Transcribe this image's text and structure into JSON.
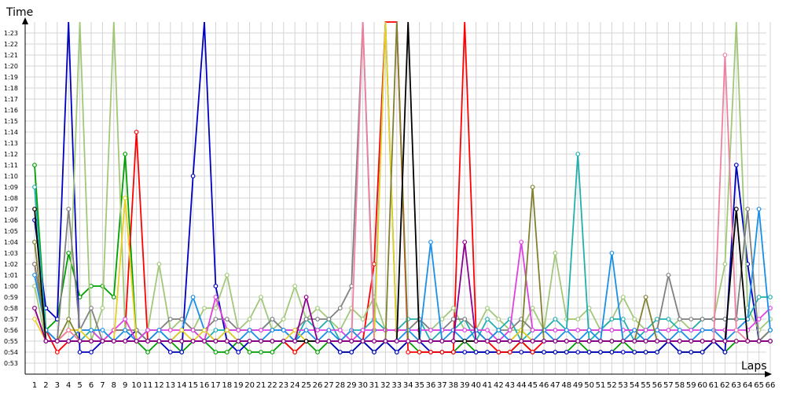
{
  "chart_data": {
    "type": "line",
    "ylabel": "Time",
    "xlabel": "Laps",
    "x_categories": [
      "1",
      "2",
      "3",
      "4",
      "5",
      "6",
      "7",
      "8",
      "9",
      "10",
      "11",
      "12",
      "13",
      "14",
      "15",
      "16",
      "17",
      "18",
      "19",
      "20",
      "21",
      "22",
      "23",
      "24",
      "25",
      "26",
      "27",
      "28",
      "29",
      "30",
      "31",
      "32",
      "33",
      "34",
      "35",
      "36",
      "37",
      "38",
      "39",
      "40",
      "41",
      "42",
      "43",
      "44",
      "45",
      "46",
      "47",
      "48",
      "49",
      "50",
      "51",
      "52",
      "53",
      "54",
      "55",
      "56",
      "57",
      "58",
      "59",
      "60",
      "61",
      "62",
      "63",
      "64",
      "65",
      "66"
    ],
    "y_ticks": [
      "0:53",
      "0:54",
      "0:55",
      "0:56",
      "0:57",
      "0:58",
      "0:59",
      "1:00",
      "1:01",
      "1:02",
      "1:03",
      "1:04",
      "1:05",
      "1:06",
      "1:07",
      "1:08",
      "1:09",
      "1:10",
      "1:11",
      "1:12",
      "1:13",
      "1:14",
      "1:15",
      "1:16",
      "1:17",
      "1:18",
      "1:19",
      "1:20",
      "1:21",
      "1:22",
      "1:23"
    ],
    "y_tick_seconds": [
      53,
      54,
      55,
      56,
      57,
      58,
      59,
      60,
      61,
      62,
      63,
      64,
      65,
      66,
      67,
      68,
      69,
      70,
      71,
      72,
      73,
      74,
      75,
      76,
      77,
      78,
      79,
      80,
      81,
      82,
      83
    ],
    "ylim_seconds": [
      52,
      84
    ],
    "y_unit": "seconds per lap (ticks shown as m:ss)",
    "grid": true,
    "series": [
      {
        "color": "#00a000",
        "values": [
          71,
          56,
          57,
          63,
          59,
          60,
          60,
          59,
          72,
          55,
          54,
          55,
          55,
          54,
          55,
          55,
          54,
          54,
          55,
          54,
          54,
          54,
          55,
          54,
          55,
          54,
          55,
          54,
          54,
          55,
          54,
          55,
          54,
          55,
          54,
          54,
          54,
          54,
          55,
          54,
          54,
          54,
          54,
          55,
          54,
          54,
          54,
          54,
          55,
          54,
          54,
          54,
          55,
          54,
          54,
          54,
          55,
          54,
          54,
          54,
          55,
          54,
          55,
          55,
          55,
          56
        ]
      },
      {
        "color": "#0000c0",
        "values": [
          66,
          58,
          57,
          90,
          54,
          54,
          55,
          55,
          55,
          56,
          55,
          55,
          54,
          54,
          70,
          90,
          60,
          55,
          54,
          55,
          55,
          55,
          55,
          55,
          55,
          55,
          55,
          54,
          54,
          55,
          54,
          55,
          54,
          55,
          55,
          54,
          54,
          54,
          54,
          54,
          54,
          54,
          54,
          54,
          54,
          54,
          54,
          54,
          54,
          54,
          54,
          54,
          54,
          54,
          54,
          54,
          55,
          54,
          54,
          54,
          55,
          54,
          71,
          62,
          55,
          55
        ]
      },
      {
        "color": "#ff0000",
        "values": [
          62,
          56,
          54,
          55,
          55,
          55,
          55,
          56,
          56,
          74,
          55,
          55,
          55,
          55,
          55,
          55,
          55,
          55,
          55,
          55,
          55,
          55,
          55,
          54,
          55,
          55,
          55,
          55,
          55,
          55,
          62,
          90,
          90,
          54,
          54,
          54,
          54,
          54,
          90,
          56,
          55,
          54,
          54,
          55,
          54,
          55,
          55,
          55,
          55,
          55,
          55,
          55,
          55,
          55,
          55,
          55,
          55,
          55,
          55,
          55,
          55,
          55,
          55,
          55,
          55,
          55
        ]
      },
      {
        "color": "#a0c878",
        "values": [
          60,
          55,
          55,
          56,
          90,
          55,
          58,
          90,
          56,
          55,
          56,
          62,
          56,
          57,
          56,
          58,
          58,
          61,
          56,
          57,
          59,
          56,
          57,
          60,
          57,
          58,
          57,
          56,
          58,
          57,
          59,
          56,
          56,
          56,
          57,
          56,
          57,
          58,
          56,
          56,
          58,
          57,
          56,
          56,
          58,
          56,
          63,
          57,
          57,
          58,
          56,
          57,
          59,
          57,
          56,
          56,
          56,
          57,
          56,
          57,
          57,
          62,
          90,
          58,
          56,
          57
        ]
      },
      {
        "color": "#20b0b0",
        "values": [
          69,
          56,
          55,
          55,
          55,
          56,
          55,
          55,
          55,
          55,
          56,
          56,
          55,
          56,
          56,
          55,
          56,
          56,
          56,
          56,
          56,
          57,
          56,
          55,
          57,
          56,
          57,
          55,
          56,
          56,
          57,
          56,
          56,
          57,
          57,
          55,
          56,
          56,
          57,
          55,
          57,
          56,
          57,
          55,
          56,
          56,
          57,
          56,
          72,
          55,
          56,
          57,
          57,
          55,
          56,
          57,
          57,
          56,
          56,
          57,
          57,
          57,
          57,
          57,
          59,
          59
        ]
      },
      {
        "color": "#808080",
        "values": [
          62,
          56,
          55,
          67,
          56,
          58,
          55,
          56,
          56,
          56,
          55,
          56,
          57,
          57,
          56,
          56,
          57,
          57,
          56,
          56,
          56,
          57,
          56,
          56,
          57,
          57,
          57,
          58,
          60,
          90,
          56,
          56,
          56,
          56,
          57,
          56,
          56,
          57,
          57,
          56,
          55,
          56,
          56,
          57,
          56,
          56,
          56,
          56,
          56,
          56,
          56,
          56,
          56,
          56,
          56,
          56,
          61,
          57,
          57,
          57,
          57,
          57,
          57,
          67,
          55,
          56
        ]
      },
      {
        "color": "#e040e0",
        "values": [
          58,
          55,
          55,
          56,
          56,
          56,
          55,
          56,
          57,
          55,
          56,
          56,
          56,
          56,
          56,
          55,
          59,
          56,
          56,
          56,
          56,
          56,
          56,
          56,
          56,
          56,
          56,
          56,
          55,
          56,
          56,
          56,
          56,
          56,
          56,
          56,
          56,
          56,
          56,
          56,
          56,
          55,
          56,
          64,
          56,
          56,
          56,
          56,
          56,
          56,
          56,
          56,
          56,
          56,
          56,
          56,
          56,
          56,
          56,
          56,
          56,
          56,
          56,
          56,
          57,
          58
        ]
      },
      {
        "color": "#1890e8",
        "values": [
          61,
          56,
          55,
          55,
          56,
          56,
          56,
          55,
          56,
          55,
          55,
          56,
          55,
          56,
          59,
          56,
          55,
          56,
          55,
          56,
          55,
          56,
          56,
          55,
          56,
          55,
          56,
          55,
          56,
          55,
          56,
          90,
          55,
          56,
          55,
          64,
          55,
          56,
          55,
          56,
          55,
          56,
          55,
          56,
          55,
          56,
          55,
          56,
          55,
          56,
          55,
          63,
          55,
          56,
          55,
          56,
          55,
          56,
          55,
          56,
          56,
          55,
          56,
          57,
          67,
          56
        ]
      },
      {
        "color": "#e8d020",
        "values": [
          57,
          55,
          55,
          56,
          56,
          55,
          55,
          55,
          68,
          55,
          55,
          55,
          55,
          56,
          55,
          56,
          55,
          56,
          55,
          55,
          55,
          55,
          55,
          56,
          55,
          55,
          55,
          55,
          55,
          55,
          55,
          90,
          55,
          55,
          55,
          55,
          55,
          55,
          55,
          55,
          55,
          55,
          55,
          56,
          55,
          55,
          55,
          55,
          55,
          55,
          55,
          55,
          55,
          55,
          55,
          55,
          55,
          55,
          55,
          55,
          55,
          55,
          55,
          55,
          55,
          55
        ]
      },
      {
        "color": "#808030",
        "values": [
          64,
          55,
          55,
          57,
          55,
          55,
          55,
          55,
          55,
          55,
          55,
          55,
          55,
          55,
          55,
          55,
          55,
          55,
          55,
          55,
          55,
          55,
          55,
          55,
          55,
          55,
          55,
          55,
          55,
          55,
          55,
          55,
          90,
          55,
          55,
          55,
          55,
          55,
          55,
          55,
          55,
          55,
          55,
          55,
          69,
          55,
          55,
          55,
          55,
          55,
          55,
          55,
          55,
          55,
          59,
          55,
          55,
          55,
          55,
          55,
          55,
          55,
          55,
          55,
          55,
          55
        ]
      },
      {
        "color": "#f080a0",
        "values": [
          58,
          55,
          55,
          56,
          55,
          55,
          55,
          55,
          55,
          55,
          55,
          55,
          55,
          55,
          55,
          55,
          55,
          55,
          55,
          55,
          55,
          55,
          55,
          55,
          55,
          55,
          55,
          55,
          55,
          90,
          55,
          55,
          55,
          55,
          55,
          55,
          55,
          55,
          55,
          55,
          55,
          55,
          55,
          55,
          55,
          55,
          55,
          55,
          55,
          55,
          55,
          55,
          55,
          55,
          55,
          55,
          55,
          55,
          55,
          55,
          55,
          81,
          56,
          55,
          55,
          55
        ]
      },
      {
        "color": "#000000",
        "values": [
          67,
          55,
          55,
          55,
          55,
          55,
          55,
          55,
          55,
          55,
          55,
          55,
          55,
          55,
          55,
          55,
          55,
          55,
          55,
          55,
          55,
          55,
          55,
          55,
          55,
          55,
          55,
          55,
          55,
          55,
          55,
          55,
          55,
          90,
          55,
          55,
          55,
          55,
          55,
          55,
          55,
          55,
          55,
          55,
          55,
          55,
          55,
          55,
          55,
          55,
          55,
          55,
          55,
          55,
          55,
          55,
          55,
          55,
          55,
          55,
          55,
          55,
          67,
          55,
          55,
          55
        ]
      },
      {
        "color": "#900090",
        "values": [
          58,
          55,
          55,
          55,
          55,
          55,
          55,
          55,
          55,
          55,
          55,
          55,
          55,
          55,
          55,
          55,
          55,
          55,
          55,
          55,
          55,
          55,
          55,
          55,
          59,
          55,
          55,
          55,
          55,
          55,
          55,
          55,
          55,
          55,
          55,
          55,
          55,
          55,
          64,
          55,
          55,
          55,
          55,
          55,
          55,
          55,
          55,
          55,
          55,
          55,
          55,
          55,
          55,
          55,
          55,
          55,
          55,
          55,
          55,
          55,
          55,
          55,
          55,
          55,
          55,
          55
        ]
      }
    ]
  }
}
